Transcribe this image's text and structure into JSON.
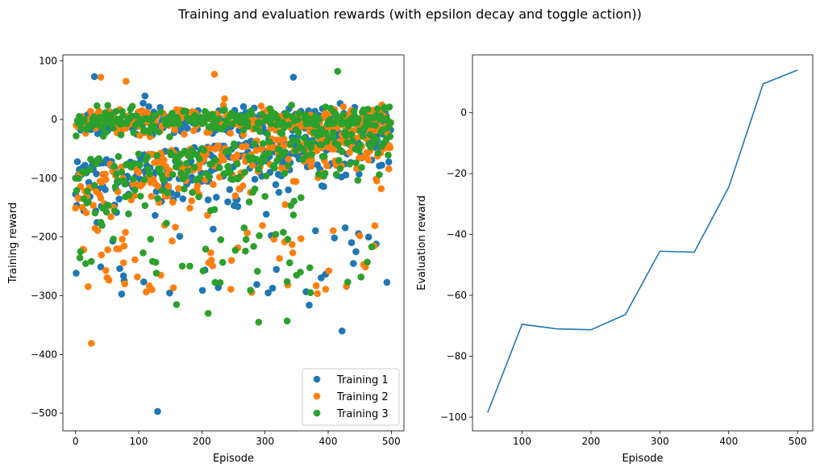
{
  "figure": {
    "title": "Training and evaluation rewards (with epsilon decay and toggle action))"
  },
  "chart_data": [
    {
      "type": "scatter",
      "xlabel": "Episode",
      "ylabel": "Training reward",
      "xlim": [
        -20,
        520
      ],
      "ylim": [
        -530,
        110
      ],
      "xticks": [
        0,
        100,
        200,
        300,
        400,
        500
      ],
      "yticks": [
        -500,
        -400,
        -300,
        -200,
        -100,
        0,
        100
      ],
      "legend_position": "lower-right",
      "points_per_series": 500,
      "series": [
        {
          "name": "Training 1",
          "color": "#1f77b4",
          "notable_points": [
            [
              130,
              -497
            ],
            [
              422,
              -360
            ],
            [
              370,
              -316
            ],
            [
              476,
              -212
            ],
            [
              110,
              40
            ],
            [
              345,
              72
            ],
            [
              30,
              73
            ]
          ]
        },
        {
          "name": "Training 2",
          "color": "#ff7f0e",
          "notable_points": [
            [
              25,
              -381
            ],
            [
              48,
              -257
            ],
            [
              135,
              -265
            ],
            [
              220,
              77
            ],
            [
              40,
              72
            ],
            [
              80,
              65
            ]
          ]
        },
        {
          "name": "Training 3",
          "color": "#2ca02c",
          "notable_points": [
            [
              290,
              -345
            ],
            [
              335,
              -343
            ],
            [
              210,
              -330
            ],
            [
              415,
              82
            ],
            [
              160,
              -315
            ]
          ]
        }
      ]
    },
    {
      "type": "line",
      "xlabel": "Episode",
      "ylabel": "Evaluation reward",
      "xlim": [
        28,
        522
      ],
      "ylim": [
        -104.5,
        19
      ],
      "xticks": [
        100,
        200,
        300,
        400,
        500
      ],
      "yticks": [
        -100,
        -80,
        -60,
        -40,
        -20,
        0
      ],
      "series": [
        {
          "color": "#1f77b4",
          "x": [
            50,
            100,
            150,
            200,
            250,
            300,
            350,
            400,
            450,
            500
          ],
          "y": [
            -98.5,
            -69.5,
            -71,
            -71.3,
            -66.3,
            -45.5,
            -45.8,
            -24.5,
            9.5,
            14
          ]
        }
      ]
    }
  ]
}
